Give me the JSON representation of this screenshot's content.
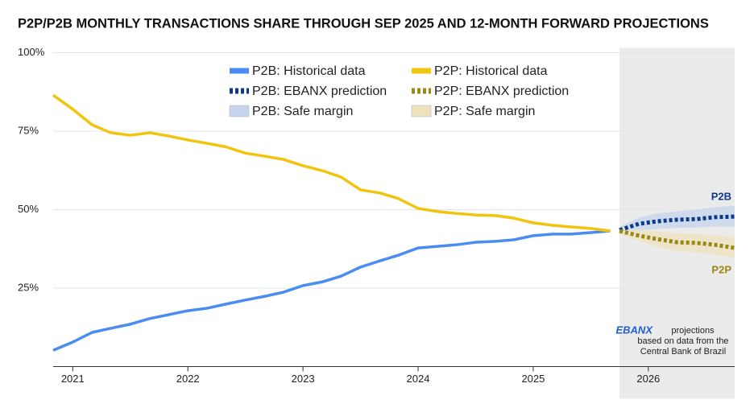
{
  "chart_data": {
    "type": "line",
    "title": "P2P/P2B MONTHLY TRANSACTIONS SHARE THROUGH SEP 2025 AND 12-MONTH FORWARD PROJECTIONS",
    "xlim": [
      2020.83,
      2026.75
    ],
    "xticks": [
      2021,
      2022,
      2023,
      2024,
      2025,
      2026
    ],
    "ylim": [
      0,
      100
    ],
    "yticks": [
      {
        "value": 25,
        "label": "25%"
      },
      {
        "value": 50,
        "label": "50%"
      },
      {
        "value": 75,
        "label": "75%"
      },
      {
        "value": 100,
        "label": "100%"
      }
    ],
    "grid": true,
    "legend": "top",
    "series": [
      {
        "name": "P2B: Historical data",
        "color": "#4a8cf0",
        "style": "solid",
        "x": [
          2020.83,
          2021.0,
          2021.17,
          2021.33,
          2021.5,
          2021.67,
          2021.83,
          2022.0,
          2022.17,
          2022.33,
          2022.5,
          2022.67,
          2022.83,
          2023.0,
          2023.17,
          2023.33,
          2023.5,
          2023.67,
          2023.83,
          2024.0,
          2024.17,
          2024.33,
          2024.5,
          2024.67,
          2024.83,
          2025.0,
          2025.17,
          2025.33,
          2025.5,
          2025.67
        ],
        "values": [
          5.2,
          7.8,
          10.9,
          12.2,
          13.5,
          15.3,
          16.5,
          17.8,
          18.6,
          19.9,
          21.2,
          22.4,
          23.7,
          25.8,
          27,
          28.8,
          31.7,
          33.7,
          35.5,
          37.8,
          38.3,
          38.8,
          39.6,
          39.9,
          40.4,
          41.7,
          42.2,
          42.2,
          42.7,
          43.2
        ]
      },
      {
        "name": "P2P: Historical data",
        "color": "#f1c40f",
        "style": "solid",
        "x": [
          2020.83,
          2021.0,
          2021.17,
          2021.33,
          2021.5,
          2021.67,
          2021.83,
          2022.0,
          2022.17,
          2022.33,
          2022.5,
          2022.67,
          2022.83,
          2023.0,
          2023.17,
          2023.33,
          2023.5,
          2023.67,
          2023.83,
          2024.0,
          2024.17,
          2024.33,
          2024.5,
          2024.67,
          2024.83,
          2025.0,
          2025.17,
          2025.33,
          2025.5,
          2025.67
        ],
        "values": [
          86.5,
          82,
          77,
          74.5,
          73.7,
          74.5,
          73.5,
          72.2,
          71.1,
          70,
          68,
          67,
          66,
          64,
          62.4,
          60.4,
          56.3,
          55.3,
          53.5,
          50.4,
          49.4,
          48.8,
          48.3,
          48.1,
          47.3,
          45.8,
          45,
          44.5,
          44,
          43.2
        ]
      },
      {
        "name": "P2B: EBANX prediction",
        "color": "#0b3a8c",
        "style": "dotted",
        "x": [
          2025.75,
          2025.92,
          2026.08,
          2026.25,
          2026.42,
          2026.58,
          2026.75
        ],
        "values": [
          43.5,
          45.5,
          46.3,
          46.8,
          47,
          47.6,
          47.8
        ]
      },
      {
        "name": "P2P: EBANX prediction",
        "color": "#9c8712",
        "style": "dotted",
        "x": [
          2025.75,
          2025.92,
          2026.08,
          2026.25,
          2026.42,
          2026.58,
          2026.75
        ],
        "values": [
          43.2,
          41.7,
          40.6,
          39.6,
          39.4,
          38.8,
          37.8
        ]
      },
      {
        "name": "P2B: Safe margin",
        "color": "#c6d4ee",
        "style": "band",
        "x": [
          2025.75,
          2025.92,
          2026.08,
          2026.25,
          2026.42,
          2026.58,
          2026.75
        ],
        "lower": [
          42.5,
          43.5,
          43.8,
          44.2,
          44.3,
          44.6,
          44.6
        ],
        "upper": [
          44.5,
          47.5,
          48.8,
          49.5,
          50,
          50.8,
          51.2
        ]
      },
      {
        "name": "P2P: Safe margin",
        "color": "#eee2bd",
        "style": "band",
        "x": [
          2025.75,
          2025.92,
          2026.08,
          2026.25,
          2026.42,
          2026.58,
          2026.75
        ],
        "lower": [
          42.2,
          40,
          38.2,
          36.8,
          36.4,
          35.6,
          34.6
        ],
        "upper": [
          44.2,
          43.5,
          43,
          42.5,
          42.3,
          41.8,
          41
        ]
      }
    ],
    "end_labels": [
      {
        "text": "P2B",
        "series": 2
      },
      {
        "text": "P2P",
        "series": 3
      }
    ],
    "annotation": {
      "logo": "EBANX",
      "lines": [
        "projections",
        "based on data from the",
        "Central Bank of Brazil"
      ]
    }
  }
}
